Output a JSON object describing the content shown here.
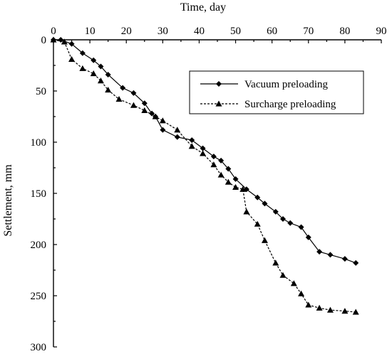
{
  "chart_data": {
    "type": "line",
    "xlabel": "Time, day",
    "ylabel": "Settlement, mm",
    "xlim": [
      0,
      90
    ],
    "ylim": [
      0,
      300
    ],
    "x_axis_position": "top",
    "y_axis_inverted": true,
    "xticks": [
      "0",
      "10",
      "20",
      "30",
      "40",
      "50",
      "60",
      "70",
      "80",
      "90"
    ],
    "yticks": [
      "0",
      "50",
      "100",
      "150",
      "200",
      "250",
      "300"
    ],
    "grid": false,
    "legend_position": "top-right",
    "series": [
      {
        "name": "Vacuum preloading",
        "marker": "diamond",
        "line": "solid",
        "x": [
          0,
          2,
          5,
          8,
          11,
          13,
          15,
          19,
          22,
          25,
          27,
          28,
          30,
          34,
          38,
          41,
          44,
          46,
          48,
          50,
          53,
          56,
          58,
          61,
          63,
          65,
          68,
          70,
          73,
          76,
          80,
          83
        ],
        "y": [
          0,
          0,
          4,
          13,
          20,
          26,
          34,
          47,
          52,
          62,
          72,
          75,
          88,
          95,
          98,
          106,
          114,
          118,
          126,
          136,
          146,
          154,
          160,
          168,
          175,
          179,
          183,
          193,
          207,
          210,
          214,
          218
        ]
      },
      {
        "name": "Surcharge preloading",
        "marker": "triangle",
        "line": "dashed",
        "x": [
          0,
          3,
          5,
          8,
          11,
          13,
          15,
          18,
          22,
          25,
          28,
          30,
          34,
          38,
          41,
          44,
          46,
          48,
          50,
          52,
          53,
          56,
          58,
          61,
          63,
          66,
          68,
          70,
          73,
          76,
          80,
          83
        ],
        "y": [
          0,
          2,
          19,
          28,
          33,
          40,
          49,
          58,
          64,
          69,
          75,
          79,
          88,
          104,
          111,
          122,
          132,
          139,
          144,
          146,
          168,
          180,
          196,
          218,
          230,
          238,
          248,
          259,
          262,
          264,
          265,
          266
        ]
      }
    ]
  }
}
